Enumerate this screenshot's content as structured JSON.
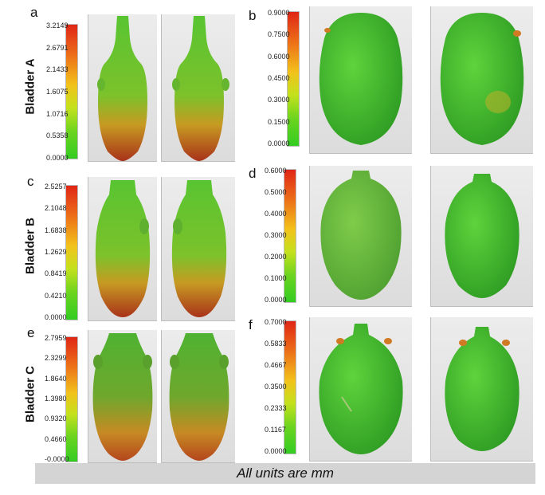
{
  "panels": [
    {
      "letter": "a",
      "scale": [
        "3.2149",
        "2.6791",
        "2.1433",
        "1.6075",
        "1.0716",
        "0.5358",
        "0.0000"
      ]
    },
    {
      "letter": "b",
      "scale": [
        "0.9000",
        "0.7500",
        "0.6000",
        "0.4500",
        "0.3000",
        "0.1500",
        "0.0000"
      ]
    },
    {
      "letter": "c",
      "scale": [
        "2.5257",
        "2.1048",
        "1.6838",
        "1.2629",
        "0.8419",
        "0.4210",
        "0.0000"
      ]
    },
    {
      "letter": "d",
      "scale": [
        "0.6000",
        "0.5000",
        "0.4000",
        "0.3000",
        "0.2000",
        "0.1000",
        "0.0000"
      ]
    },
    {
      "letter": "e",
      "scale": [
        "2.7959",
        "2.3299",
        "1.8640",
        "1.3980",
        "0.9320",
        "0.4660",
        "-0.0000"
      ]
    },
    {
      "letter": "f",
      "scale": [
        "0.7000",
        "0.5833",
        "0.4667",
        "0.3500",
        "0.2333",
        "0.1167",
        "0.0000"
      ]
    }
  ],
  "rows": [
    {
      "label": "Bladder A"
    },
    {
      "label": "Bladder B"
    },
    {
      "label": "Bladder C"
    }
  ],
  "footer": "All units are mm",
  "colors": {
    "high": "#e02616",
    "mid": "#f2c21b",
    "low": "#33cc22"
  }
}
